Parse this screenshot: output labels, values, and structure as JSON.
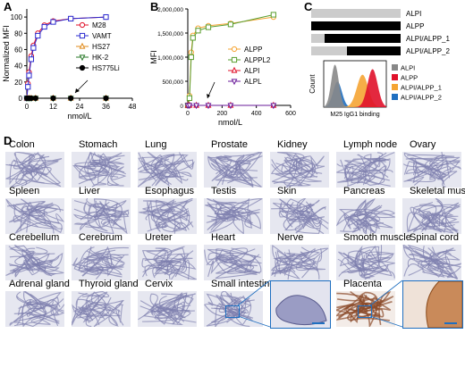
{
  "panels": {
    "a": "A",
    "b": "B",
    "c": "C",
    "d": "D"
  },
  "colors": {
    "orange": "#f5a433",
    "red": "#e0112a",
    "grey": "#888888",
    "blue": "#1f6fc0",
    "green": "#5a9e2f",
    "purple": "#6a1b9a",
    "navy": "#2a2ad0"
  },
  "chart_data": [
    {
      "panel": "A",
      "type": "line",
      "ylabel": "Normalized MFI",
      "xlabel": "nmol/L",
      "xticks": [
        0,
        12,
        24,
        36,
        48
      ],
      "yticks": [
        0,
        20,
        40,
        60,
        80,
        100
      ],
      "xlim": [
        0,
        48
      ],
      "ylim": [
        0,
        110
      ],
      "series": [
        {
          "name": "M28",
          "color": "#e0112a",
          "marker": "circle-open",
          "x": [
            0,
            0.5,
            1,
            2,
            3,
            5,
            8,
            12,
            20,
            36
          ],
          "y": [
            0,
            18,
            32,
            52,
            65,
            80,
            90,
            95,
            98,
            100
          ]
        },
        {
          "name": "VAMT",
          "color": "#2a2ad0",
          "marker": "square-open",
          "x": [
            0,
            0.5,
            1,
            2,
            3,
            5,
            8,
            12,
            20,
            36
          ],
          "y": [
            0,
            14,
            28,
            48,
            62,
            77,
            88,
            94,
            98,
            100
          ]
        },
        {
          "name": "HS27",
          "color": "#e08a1a",
          "marker": "triangle-open",
          "x": [
            0,
            1,
            2,
            4,
            12,
            20,
            36
          ],
          "y": [
            0,
            0,
            0,
            0,
            0,
            0,
            0
          ]
        },
        {
          "name": "HK-2",
          "color": "#2a7a2a",
          "marker": "triangle-down-open",
          "x": [
            0,
            1,
            2,
            4,
            12,
            20,
            36
          ],
          "y": [
            0,
            0,
            0,
            0,
            0,
            0,
            0
          ]
        },
        {
          "name": "HS775Li",
          "color": "#000000",
          "marker": "circle-filled",
          "x": [
            0,
            1,
            2,
            4,
            12,
            20,
            36
          ],
          "y": [
            0,
            0,
            0,
            0,
            0,
            0,
            0
          ]
        }
      ]
    },
    {
      "panel": "B",
      "type": "line",
      "ylabel": "MFI",
      "xlabel": "nmol/L",
      "xticks": [
        0,
        200,
        400,
        600
      ],
      "yticks": [
        "0",
        "500,000",
        "1,000,000",
        "1,500,000",
        "2,000,000"
      ],
      "xlim": [
        0,
        600
      ],
      "ylim": [
        0,
        2000000
      ],
      "series": [
        {
          "name": "ALPP",
          "color": "#f5a433",
          "marker": "circle-open",
          "x": [
            0,
            10,
            20,
            30,
            60,
            120,
            250,
            500
          ],
          "y": [
            0,
            200000,
            1100000,
            1450000,
            1600000,
            1650000,
            1700000,
            1830000
          ]
        },
        {
          "name": "ALPPL2",
          "color": "#5a9e2f",
          "marker": "square-open",
          "x": [
            0,
            10,
            20,
            30,
            60,
            120,
            250,
            500
          ],
          "y": [
            0,
            150000,
            1000000,
            1400000,
            1550000,
            1620000,
            1680000,
            1880000
          ]
        },
        {
          "name": "ALPI",
          "color": "#e0112a",
          "marker": "triangle-open",
          "x": [
            0,
            10,
            50,
            120,
            250,
            500
          ],
          "y": [
            0,
            0,
            0,
            0,
            0,
            0
          ]
        },
        {
          "name": "ALPL",
          "color": "#6a1b9a",
          "marker": "triangle-down-open",
          "x": [
            0,
            10,
            50,
            120,
            250,
            500
          ],
          "y": [
            0,
            0,
            0,
            0,
            0,
            0
          ]
        }
      ]
    },
    {
      "panel": "C",
      "type": "area",
      "xlabel": "M25 IgG1 binding",
      "ylabel": "Count",
      "bars": [
        {
          "label": "ALPI",
          "segments": [
            {
              "from": 0,
              "to": 1,
              "color": "#cccccc"
            }
          ]
        },
        {
          "label": "ALPP",
          "segments": [
            {
              "from": 0,
              "to": 1,
              "color": "#000000"
            }
          ]
        },
        {
          "label": "ALPI/ALPP_1",
          "segments": [
            {
              "from": 0,
              "to": 0.15,
              "color": "#cccccc"
            },
            {
              "from": 0.15,
              "to": 1,
              "color": "#000000"
            }
          ]
        },
        {
          "label": "ALPI/ALPP_2",
          "segments": [
            {
              "from": 0,
              "to": 0.4,
              "color": "#cccccc"
            },
            {
              "from": 0.4,
              "to": 1,
              "color": "#000000"
            }
          ]
        }
      ],
      "series": [
        {
          "name": "ALPI",
          "color": "#888888"
        },
        {
          "name": "ALPP",
          "color": "#e0112a"
        },
        {
          "name": "ALPI/ALPP_1",
          "color": "#f5a433"
        },
        {
          "name": "ALPI/ALPP_2",
          "color": "#1f6fc0"
        }
      ]
    }
  ],
  "tissues": [
    [
      "Colon",
      "Stomach",
      "Lung",
      "Prostate",
      "Kidney",
      "Lymph node",
      "Ovary"
    ],
    [
      "Spleen",
      "Liver",
      "Esophagus",
      "Testis",
      "Skin",
      "Pancreas",
      "Skeletal muscle"
    ],
    [
      "Cerebellum",
      "Cerebrum",
      "Ureter",
      "Heart",
      "Nerve",
      "Smooth muscle",
      "Spinal cord"
    ],
    [
      "Adrenal gland",
      "Thyroid gland",
      "Cervix",
      "Small intestine",
      "",
      "Placenta",
      ""
    ]
  ]
}
